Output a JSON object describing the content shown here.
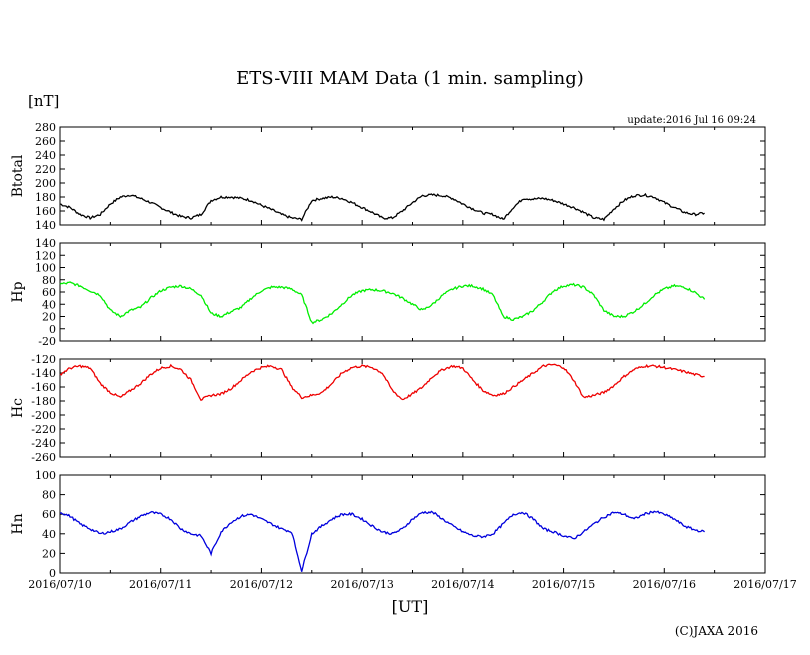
{
  "chart_data": [
    {
      "type": "line",
      "ylabel": "Btotal",
      "unit": "[nT]",
      "ylim": [
        140,
        280
      ],
      "yticks": [
        140,
        160,
        180,
        200,
        220,
        240,
        260,
        280
      ],
      "color": "#000000",
      "values": [
        170,
        165,
        155,
        150,
        155,
        170,
        180,
        183,
        178,
        172,
        165,
        158,
        152,
        150,
        155,
        175,
        180,
        180,
        178,
        175,
        168,
        162,
        155,
        150,
        148,
        175,
        178,
        180,
        178,
        172,
        165,
        158,
        150,
        150,
        160,
        172,
        182,
        183,
        182,
        178,
        170,
        163,
        157,
        155,
        148,
        165,
        178,
        177,
        178,
        175,
        170,
        165,
        158,
        150,
        148,
        163,
        175,
        182,
        183,
        180,
        172,
        165,
        158,
        155,
        157
      ]
    },
    {
      "type": "line",
      "ylabel": "Hp",
      "ylim": [
        -20,
        140
      ],
      "yticks": [
        -20,
        0,
        20,
        40,
        60,
        80,
        100,
        120,
        140
      ],
      "color": "#00ee00",
      "values": [
        73,
        75,
        70,
        62,
        55,
        30,
        20,
        30,
        35,
        50,
        62,
        68,
        70,
        65,
        55,
        25,
        20,
        28,
        35,
        50,
        62,
        68,
        68,
        65,
        55,
        10,
        15,
        25,
        40,
        55,
        62,
        64,
        62,
        58,
        50,
        40,
        30,
        40,
        55,
        65,
        70,
        70,
        65,
        55,
        20,
        15,
        20,
        30,
        45,
        62,
        70,
        72,
        68,
        55,
        30,
        20,
        20,
        28,
        40,
        55,
        65,
        70,
        68,
        60,
        48
      ]
    },
    {
      "type": "line",
      "ylabel": "Hc",
      "ylim": [
        -260,
        -120
      ],
      "yticks": [
        -260,
        -240,
        -220,
        -200,
        -180,
        -160,
        -140,
        -120
      ],
      "color": "#ee0000",
      "values": [
        -142,
        -133,
        -130,
        -133,
        -155,
        -168,
        -175,
        -165,
        -155,
        -142,
        -133,
        -130,
        -135,
        -150,
        -178,
        -172,
        -170,
        -162,
        -150,
        -138,
        -132,
        -130,
        -135,
        -160,
        -175,
        -172,
        -168,
        -155,
        -140,
        -132,
        -130,
        -132,
        -140,
        -165,
        -178,
        -170,
        -160,
        -145,
        -135,
        -130,
        -133,
        -150,
        -165,
        -172,
        -170,
        -160,
        -150,
        -140,
        -130,
        -128,
        -132,
        -150,
        -175,
        -172,
        -168,
        -158,
        -145,
        -135,
        -130,
        -130,
        -132,
        -135,
        -138,
        -142,
        -145
      ]
    },
    {
      "type": "line",
      "ylabel": "Hn",
      "ylim": [
        0,
        100
      ],
      "yticks": [
        0,
        20,
        40,
        60,
        80,
        100
      ],
      "color": "#0000dd",
      "values": [
        62,
        58,
        50,
        45,
        40,
        42,
        45,
        52,
        58,
        62,
        60,
        55,
        45,
        40,
        38,
        20,
        42,
        52,
        58,
        60,
        55,
        50,
        45,
        42,
        2,
        40,
        48,
        55,
        60,
        60,
        55,
        48,
        42,
        40,
        45,
        55,
        62,
        62,
        55,
        48,
        42,
        38,
        37,
        40,
        50,
        60,
        62,
        55,
        45,
        42,
        38,
        35,
        42,
        50,
        57,
        62,
        60,
        55,
        60,
        63,
        60,
        55,
        48,
        44,
        42
      ]
    }
  ],
  "title": "ETS-VIII MAM Data (1 min. sampling)",
  "unit_label": "[nT]",
  "update": "update:2016 Jul 16 09:24",
  "x_step_days": 0.1,
  "xticks": [
    "2016/07/10",
    "2016/07/11",
    "2016/07/12",
    "2016/07/13",
    "2016/07/14",
    "2016/07/15",
    "2016/07/16",
    "2016/07/17"
  ],
  "xlabel": "[UT]",
  "copyright": "(C)JAXA 2016"
}
